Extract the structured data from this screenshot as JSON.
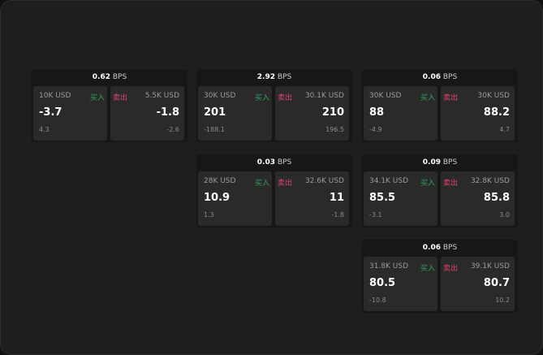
{
  "unit": "BPS",
  "buy_label": "买入",
  "sell_label": "卖出",
  "colors": {
    "buy": "#2ea35a",
    "sell": "#e0446a"
  },
  "cards": [
    {
      "spread": "0.62",
      "buy": {
        "amount": "10K USD",
        "price": "-3.7",
        "change": "4.3"
      },
      "sell": {
        "amount": "5.5K USD",
        "price": "-1.8",
        "change": "-2.6"
      }
    },
    {
      "spread": "2.92",
      "buy": {
        "amount": "30K USD",
        "price": "201",
        "change": "-188.1"
      },
      "sell": {
        "amount": "30.1K USD",
        "price": "210",
        "change": "196.5"
      }
    },
    {
      "spread": "0.06",
      "buy": {
        "amount": "30K USD",
        "price": "88",
        "change": "-4.9"
      },
      "sell": {
        "amount": "30K USD",
        "price": "88.2",
        "change": "4.7"
      }
    },
    {
      "spread": "0.03",
      "buy": {
        "amount": "28K USD",
        "price": "10.9",
        "change": "1.3"
      },
      "sell": {
        "amount": "32.6K USD",
        "price": "11",
        "change": "-1.8"
      }
    },
    {
      "spread": "0.09",
      "buy": {
        "amount": "34.1K USD",
        "price": "85.5",
        "change": "-3.1"
      },
      "sell": {
        "amount": "32.8K USD",
        "price": "85.8",
        "change": "3.0"
      }
    },
    {
      "spread": "0.06",
      "buy": {
        "amount": "31.8K USD",
        "price": "80.5",
        "change": "-10.8"
      },
      "sell": {
        "amount": "39.1K USD",
        "price": "80.7",
        "change": "10.2"
      }
    }
  ]
}
